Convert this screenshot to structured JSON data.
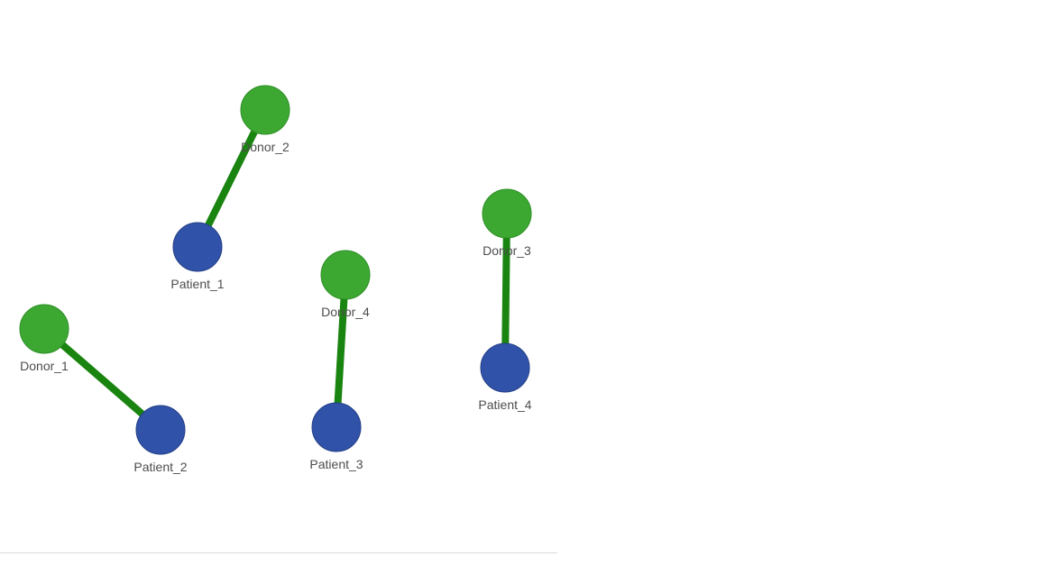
{
  "graph": {
    "colors": {
      "donor_fill": "#3ca832",
      "donor_stroke": "#2e8f26",
      "patient_fill": "#3052a8",
      "patient_stroke": "#243f86",
      "edge": "#1a8410"
    },
    "nodes": [
      {
        "id": "donor_2",
        "label": "Donor_2",
        "type": "donor"
      },
      {
        "id": "patient_1",
        "label": "Patient_1",
        "type": "patient"
      },
      {
        "id": "donor_3",
        "label": "Donor_3",
        "type": "donor"
      },
      {
        "id": "donor_4",
        "label": "Donor_4",
        "type": "donor"
      },
      {
        "id": "donor_1",
        "label": "Donor_1",
        "type": "donor"
      },
      {
        "id": "patient_4",
        "label": "Patient_4",
        "type": "patient"
      },
      {
        "id": "patient_2",
        "label": "Patient_2",
        "type": "patient"
      },
      {
        "id": "patient_3",
        "label": "Patient_3",
        "type": "patient"
      }
    ],
    "edges": [
      {
        "source": "donor_2",
        "target": "patient_1"
      },
      {
        "source": "donor_1",
        "target": "patient_2"
      },
      {
        "source": "donor_4",
        "target": "patient_3"
      },
      {
        "source": "donor_3",
        "target": "patient_4"
      }
    ]
  }
}
